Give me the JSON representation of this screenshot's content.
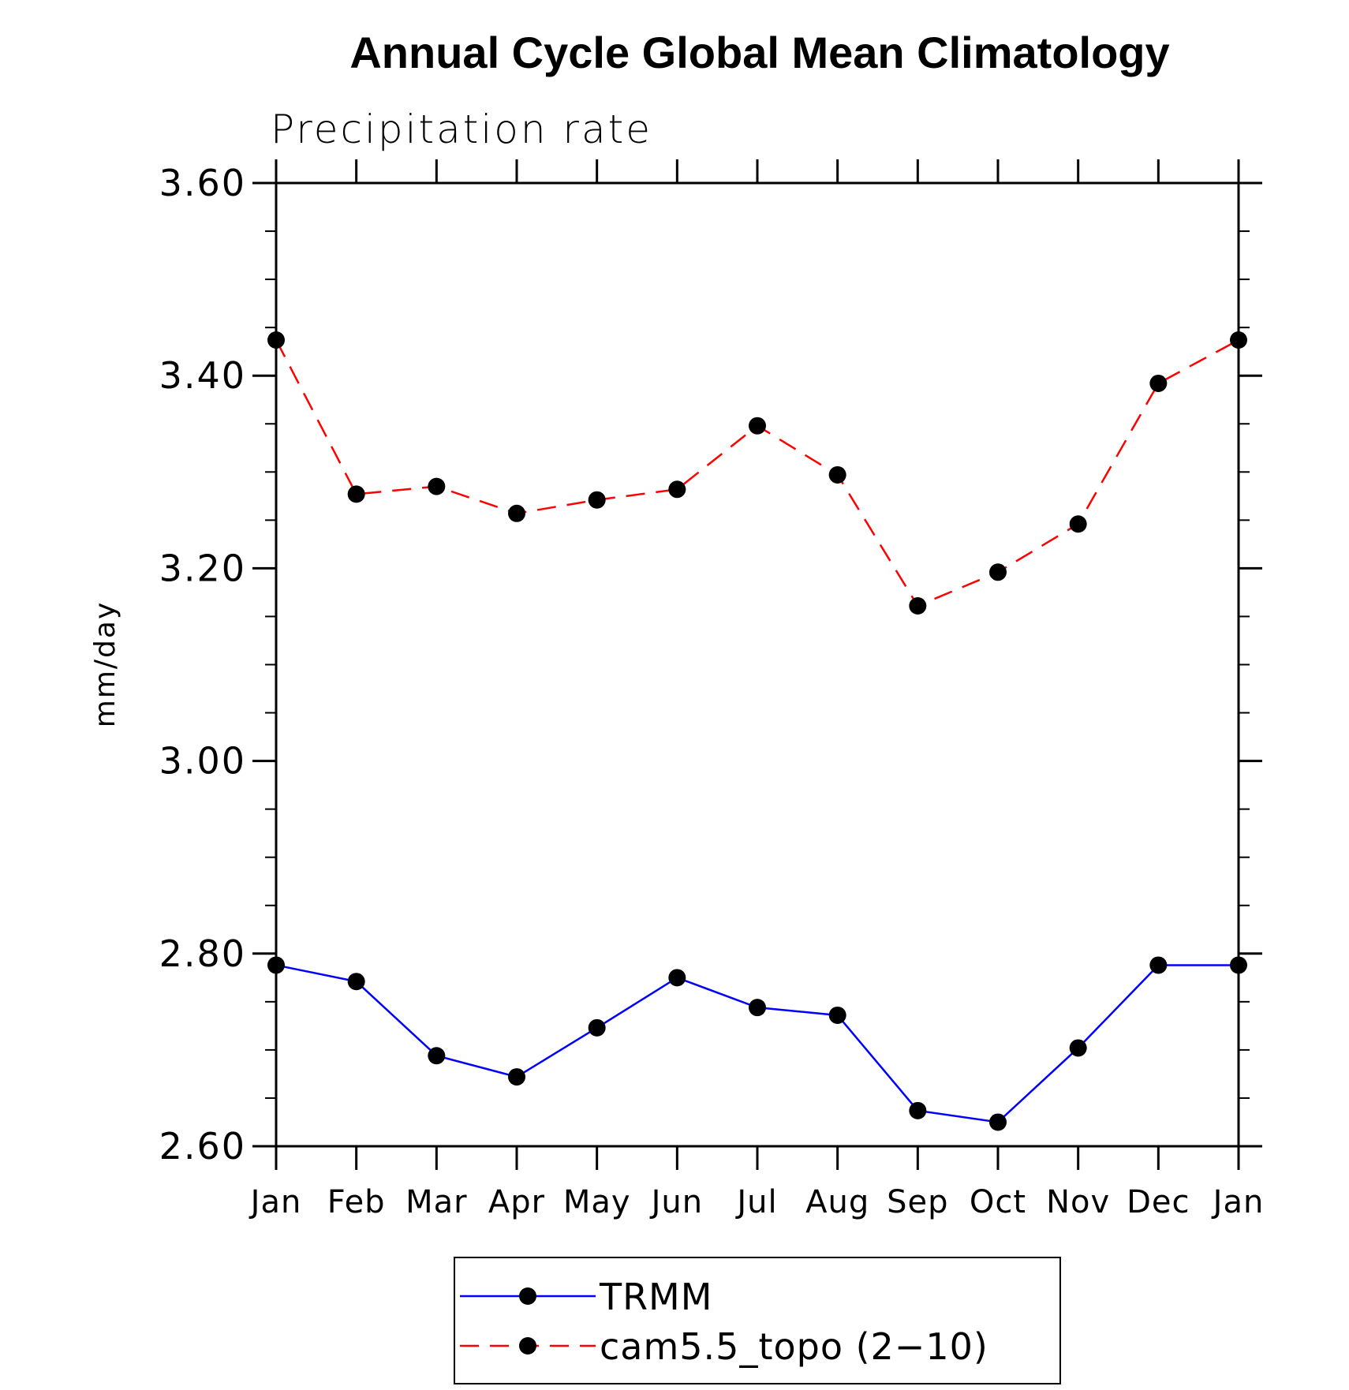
{
  "chart_data": {
    "type": "line",
    "title": "Annual Cycle Global Mean Climatology",
    "subtitle": "Precipitation rate",
    "xlabel": "",
    "ylabel": "mm/day",
    "categories": [
      "Jan",
      "Feb",
      "Mar",
      "Apr",
      "May",
      "Jun",
      "Jul",
      "Aug",
      "Sep",
      "Oct",
      "Nov",
      "Dec",
      "Jan"
    ],
    "ylim": [
      2.6,
      3.6
    ],
    "yticks": [
      "3.60",
      "3.40",
      "3.20",
      "3.00",
      "2.80",
      "2.60"
    ],
    "ytick_values": [
      3.6,
      3.4,
      3.2,
      3.0,
      2.8,
      2.6
    ],
    "grid": false,
    "legend_placement": "bottom-center",
    "series": [
      {
        "name": "TRMM",
        "color": "#0000ff",
        "line_style": "solid",
        "marker": "filled-circle",
        "values": [
          2.788,
          2.771,
          2.694,
          2.672,
          2.723,
          2.775,
          2.744,
          2.736,
          2.637,
          2.625,
          2.702,
          2.788,
          2.788
        ]
      },
      {
        "name": "cam5.5_topo (2−10)",
        "color": "#ff0000",
        "line_style": "dashed",
        "marker": "filled-circle",
        "values": [
          3.437,
          3.277,
          3.285,
          3.257,
          3.271,
          3.282,
          3.348,
          3.297,
          3.161,
          3.196,
          3.246,
          3.392,
          3.437
        ]
      }
    ]
  }
}
